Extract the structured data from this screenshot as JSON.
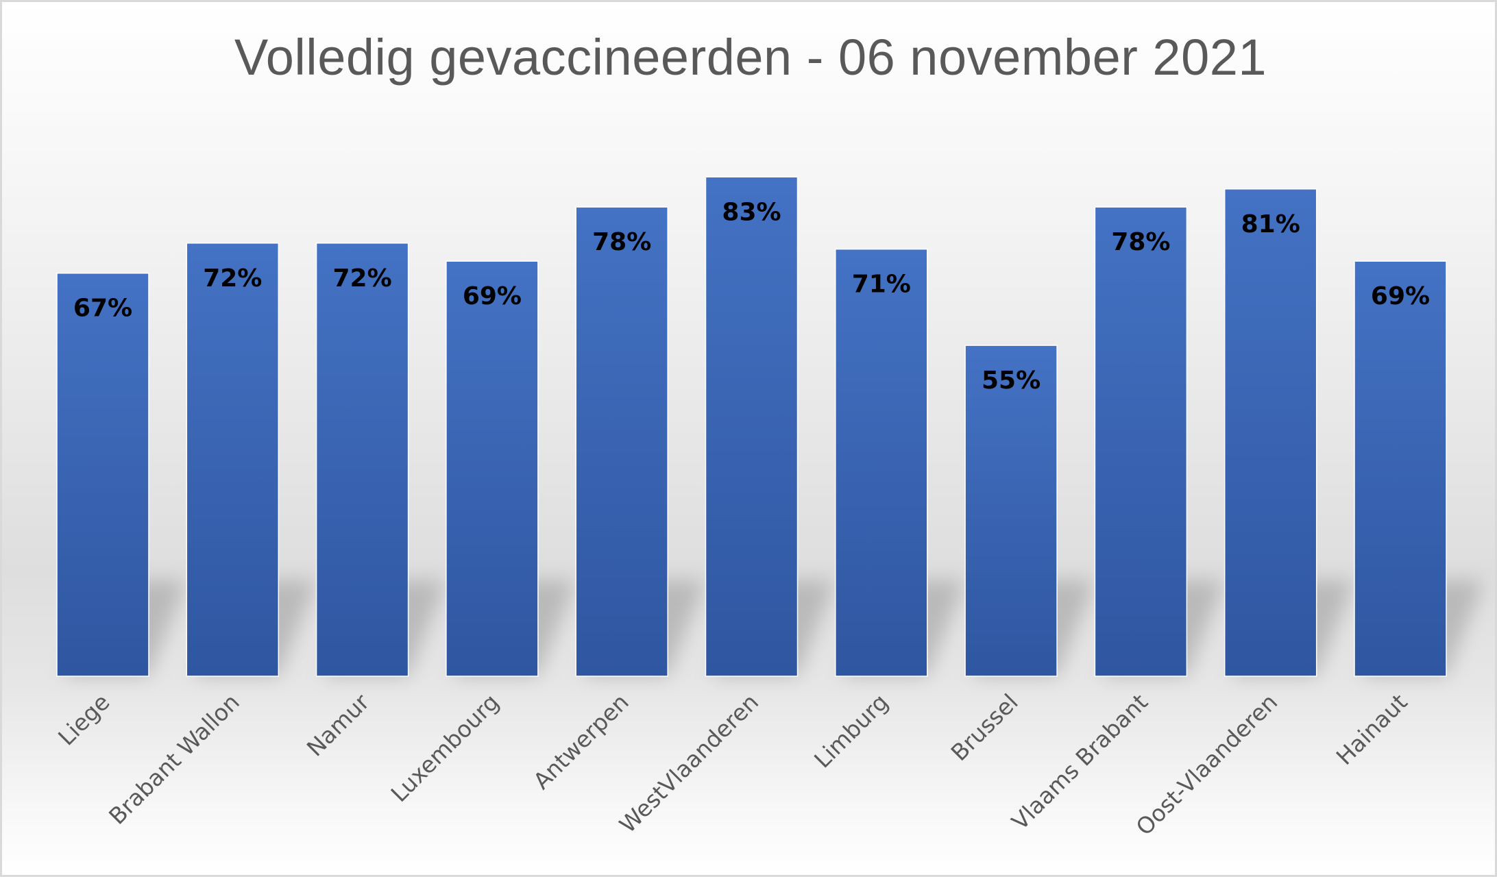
{
  "chart_data": {
    "type": "bar",
    "title": "Volledig gevaccineerden - 06 november 2021",
    "xlabel": "",
    "ylabel": "",
    "ylim": [
      0,
      100
    ],
    "grid": false,
    "legend": "none",
    "categories": [
      "Liege",
      "Brabant Wallon",
      "Namur",
      "Luxembourg",
      "Antwerpen",
      "WestVlaanderen",
      "Limburg",
      "Brussel",
      "Vlaams Brabant",
      "Oost-Vlaanderen",
      "Hainaut"
    ],
    "values": [
      67,
      72,
      72,
      69,
      78,
      83,
      71,
      55,
      78,
      81,
      69
    ],
    "data_labels": [
      "67%",
      "72%",
      "72%",
      "69%",
      "78%",
      "83%",
      "71%",
      "55%",
      "78%",
      "81%",
      "69%"
    ],
    "bar_color": "#4472c4"
  }
}
